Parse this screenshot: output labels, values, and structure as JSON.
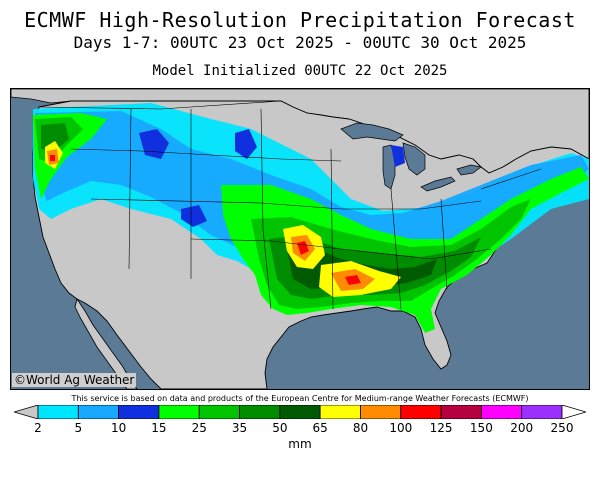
{
  "header": {
    "title": "ECMWF High-Resolution Precipitation Forecast",
    "subtitle": "Days 1-7: 00UTC 23 Oct 2025 - 00UTC 30 Oct 2025",
    "init": "Model Initialized 00UTC 22 Oct 2025"
  },
  "map": {
    "water_color": "#5b7a96",
    "land_color": "#c8c8c8",
    "border_color": "#000000",
    "credit": "©World Ag Weather",
    "disclaimer": "This service is based on data and products of the European Centre for Medium-range Weather Forecasts (ECMWF)"
  },
  "legend": {
    "unit": "mm",
    "bins": [
      {
        "from": null,
        "to": 2,
        "color": "#c8c8c8"
      },
      {
        "from": 2,
        "to": 5,
        "color": "#00e5ff"
      },
      {
        "from": 5,
        "to": 10,
        "color": "#18a8ff"
      },
      {
        "from": 10,
        "to": 15,
        "color": "#1030e0"
      },
      {
        "from": 15,
        "to": 25,
        "color": "#00ff00"
      },
      {
        "from": 25,
        "to": 35,
        "color": "#00c400"
      },
      {
        "from": 35,
        "to": 50,
        "color": "#008c00"
      },
      {
        "from": 50,
        "to": 65,
        "color": "#005a00"
      },
      {
        "from": 65,
        "to": 80,
        "color": "#ffff00"
      },
      {
        "from": 80,
        "to": 100,
        "color": "#ff8c00"
      },
      {
        "from": 100,
        "to": 125,
        "color": "#ff0000"
      },
      {
        "from": 125,
        "to": 150,
        "color": "#b40040"
      },
      {
        "from": 150,
        "to": 200,
        "color": "#ff00ff"
      },
      {
        "from": 200,
        "to": 250,
        "color": "#9b30ff"
      },
      {
        "from": 250,
        "to": null,
        "color": "#ffffff"
      }
    ],
    "tick_labels": [
      "2",
      "5",
      "10",
      "15",
      "25",
      "35",
      "50",
      "65",
      "80",
      "100",
      "125",
      "150",
      "200",
      "250"
    ]
  }
}
